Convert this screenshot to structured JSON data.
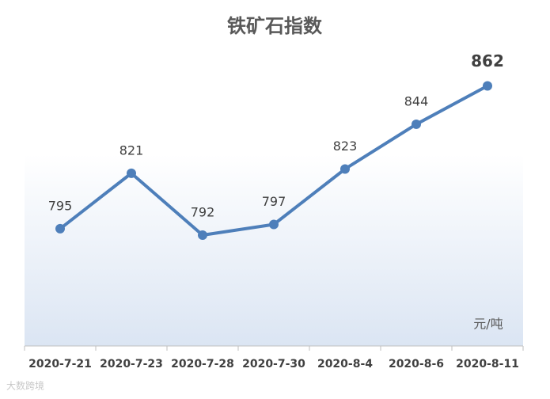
{
  "chart_data": {
    "type": "line",
    "title": "铁矿石指数",
    "categories": [
      "2020-7-21",
      "2020-7-23",
      "2020-7-28",
      "2020-7-30",
      "2020-8-4",
      "2020-8-6",
      "2020-8-11"
    ],
    "series": [
      {
        "name": "铁矿石指数",
        "color": "#4e7fba",
        "values": [
          795,
          821,
          792,
          797,
          823,
          844,
          862
        ]
      }
    ],
    "ylim": [
      740,
      880
    ],
    "unit_label": "元/吨",
    "watermark": "大数跨境"
  }
}
